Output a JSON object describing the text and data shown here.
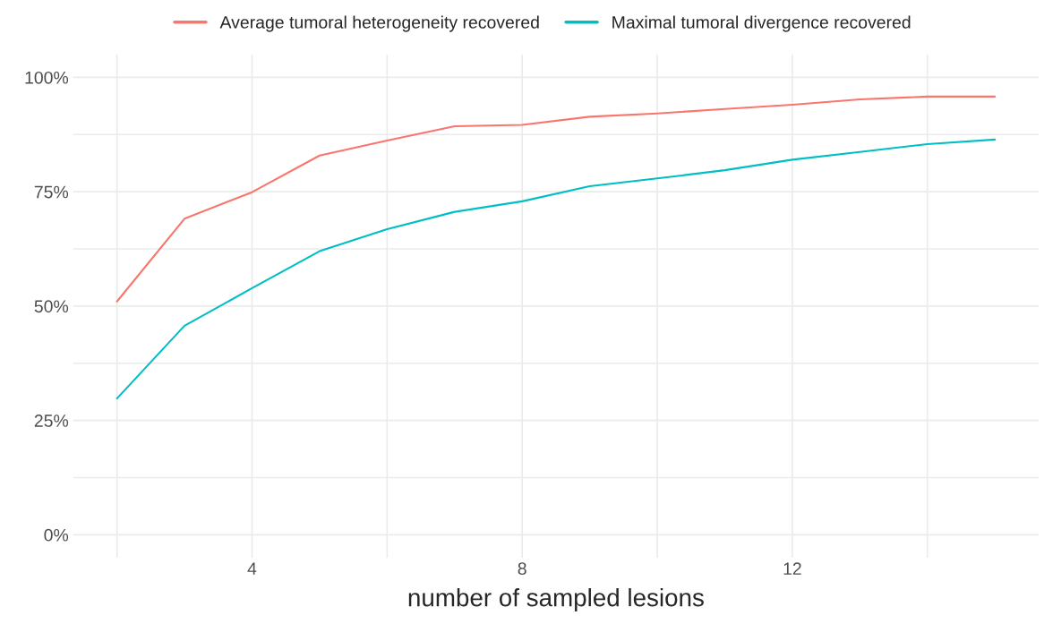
{
  "chart_data": {
    "type": "line",
    "xlabel": "number of sampled lesions",
    "x": [
      2,
      3,
      4,
      5,
      6,
      7,
      8,
      9,
      10,
      11,
      12,
      13,
      14,
      15
    ],
    "series": [
      {
        "name": "Average tumoral heterogeneity recovered",
        "color": "#f8766d",
        "values": [
          51,
          69.1,
          74.9,
          82.9,
          86.2,
          89.3,
          89.6,
          91.4,
          92.1,
          93.1,
          94.0,
          95.2,
          95.8,
          95.8
        ]
      },
      {
        "name": "Maximal tumoral divergence recovered",
        "color": "#00bfc4",
        "values": [
          29.8,
          45.7,
          53.9,
          62.0,
          66.8,
          70.6,
          72.9,
          76.2,
          77.9,
          79.7,
          82.0,
          83.7,
          85.4,
          86.4
        ]
      }
    ],
    "xlim": [
      1.35,
      15.65
    ],
    "ylim": [
      -5,
      105
    ],
    "xticks": [
      {
        "value": 2,
        "label": null
      },
      4,
      {
        "value": 6,
        "label": null
      },
      8,
      {
        "value": 10,
        "label": null
      },
      12,
      {
        "value": 14,
        "label": null
      }
    ],
    "yticks": [
      {
        "value": 0,
        "label": "0%"
      },
      {
        "value": 12.5,
        "label": null
      },
      {
        "value": 25,
        "label": "25%"
      },
      {
        "value": 37.5,
        "label": null
      },
      {
        "value": 50,
        "label": "50%"
      },
      {
        "value": 62.5,
        "label": null
      },
      {
        "value": 75,
        "label": "75%"
      },
      {
        "value": 87.5,
        "label": null
      },
      {
        "value": 100,
        "label": "100%"
      }
    ],
    "grid": true,
    "legend": "top",
    "marker": "none",
    "line_style": "solid"
  }
}
